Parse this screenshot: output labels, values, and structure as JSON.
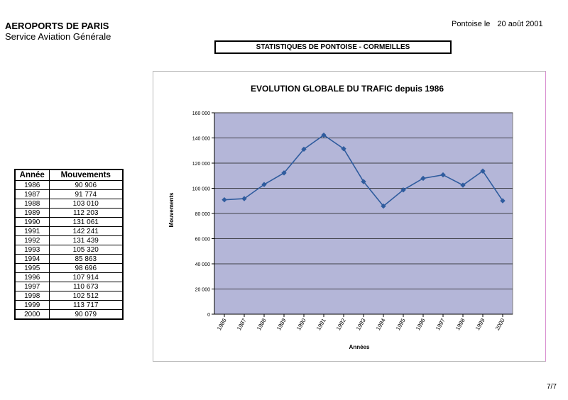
{
  "header": {
    "organization": "AEROPORTS DE PARIS",
    "department": "Service Aviation Générale",
    "place": "Pontoise le",
    "date": "20 août 2001",
    "section_title": "STATISTIQUES DE PONTOISE - CORMEILLES"
  },
  "table": {
    "headers": [
      "Année",
      "Mouvements"
    ],
    "rows": [
      [
        "1986",
        "90 906"
      ],
      [
        "1987",
        "91 774"
      ],
      [
        "1988",
        "103 010"
      ],
      [
        "1989",
        "112 203"
      ],
      [
        "1990",
        "131 061"
      ],
      [
        "1991",
        "142 241"
      ],
      [
        "1992",
        "131 439"
      ],
      [
        "1993",
        "105 320"
      ],
      [
        "1994",
        "85 863"
      ],
      [
        "1995",
        "98 696"
      ],
      [
        "1996",
        "107 914"
      ],
      [
        "1997",
        "110 673"
      ],
      [
        "1998",
        "102 512"
      ],
      [
        "1999",
        "113 717"
      ],
      [
        "2000",
        "90 079"
      ]
    ]
  },
  "chart_data": {
    "type": "line",
    "title": "EVOLUTION GLOBALE DU TRAFIC depuis 1986",
    "xlabel": "Années",
    "ylabel": "Mouvements",
    "x": [
      "1986",
      "1987",
      "1988",
      "1989",
      "1990",
      "1991",
      "1992",
      "1993",
      "1994",
      "1995",
      "1996",
      "1997",
      "1998",
      "1999",
      "2000"
    ],
    "y": [
      90906,
      91774,
      103010,
      112203,
      131061,
      142241,
      131439,
      105320,
      85863,
      98696,
      107914,
      110673,
      102512,
      113717,
      90079
    ],
    "ylim": [
      0,
      160000
    ],
    "yticks": [
      0,
      20000,
      40000,
      60000,
      80000,
      100000,
      120000,
      140000,
      160000
    ],
    "ytick_labels": [
      "0",
      "20 000",
      "40 000",
      "60 000",
      "80 000",
      "100 000",
      "120 000",
      "140 000",
      "160 000"
    ],
    "grid": true,
    "plot_background": "#b4b6d8",
    "line_color": "#2f5c9e",
    "legend": "none"
  },
  "footer": {
    "page_number": "7/7"
  }
}
